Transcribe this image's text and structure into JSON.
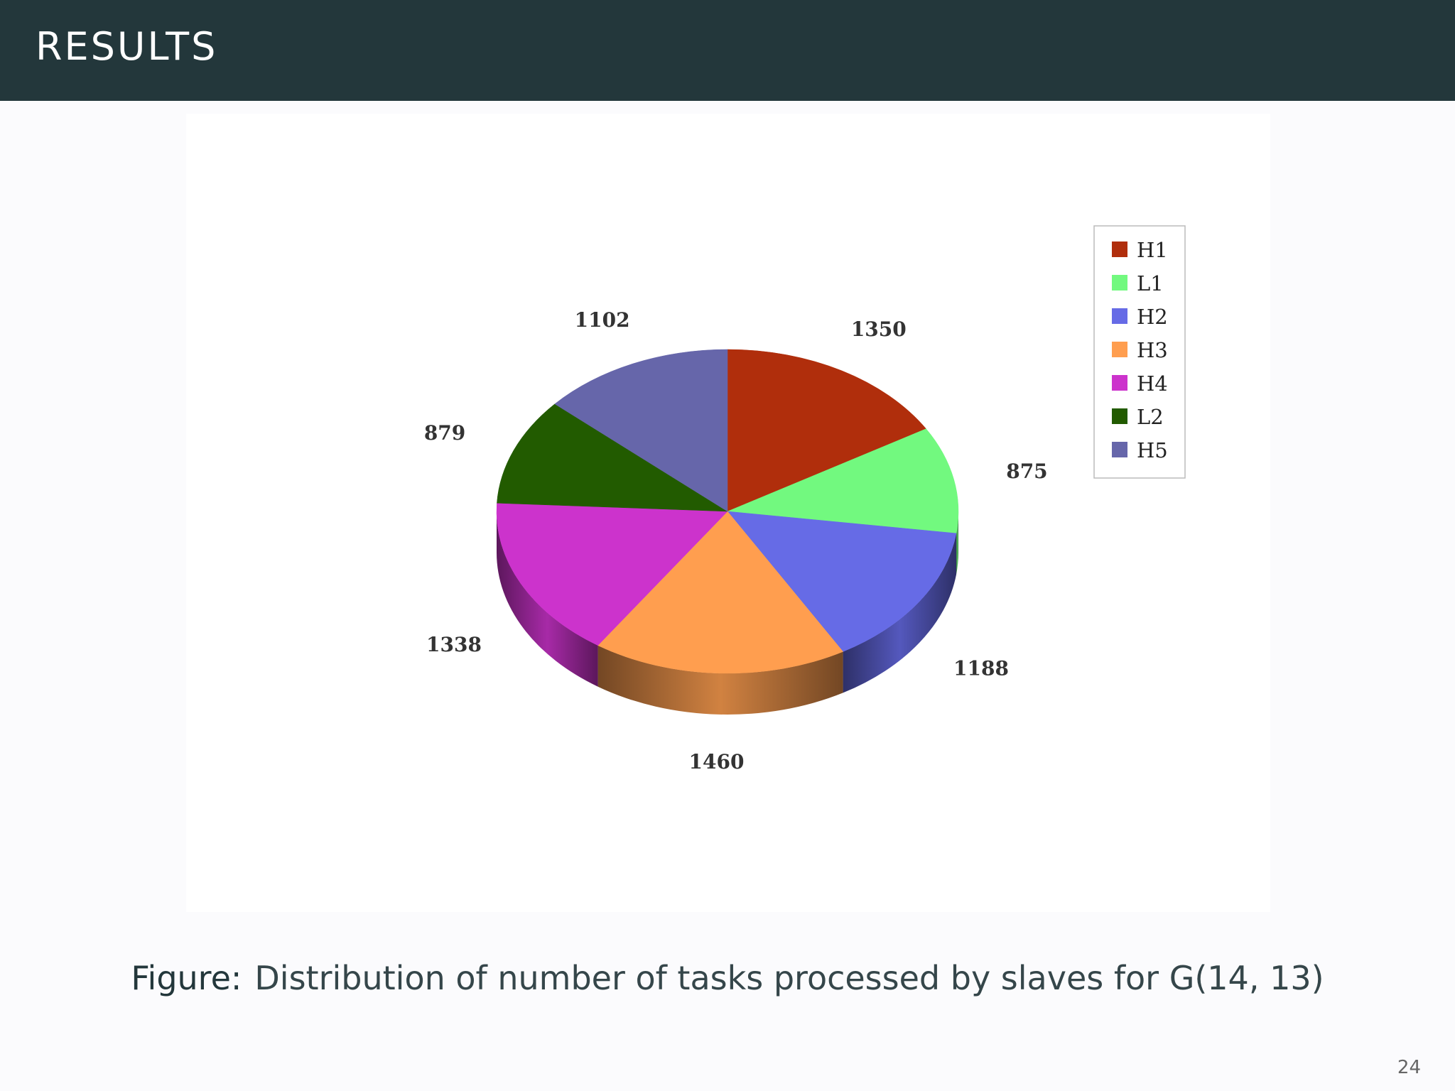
{
  "header": {
    "title": "RESULTS"
  },
  "caption": {
    "label": "Figure:",
    "text": "Distribution of number of tasks processed by slaves for G(14, 13)"
  },
  "page_number": "24",
  "chart_data": {
    "type": "pie",
    "categories": [
      "H1",
      "L1",
      "H2",
      "H3",
      "H4",
      "L2",
      "H5"
    ],
    "values": [
      1350,
      875,
      1188,
      1460,
      1338,
      879,
      1102
    ],
    "colors": [
      "#b02e0c",
      "#72f97f",
      "#666be6",
      "#ff9e4f",
      "#cc33cc",
      "#225b00",
      "#6666aa"
    ],
    "style": "3d",
    "legend_position": "right"
  }
}
